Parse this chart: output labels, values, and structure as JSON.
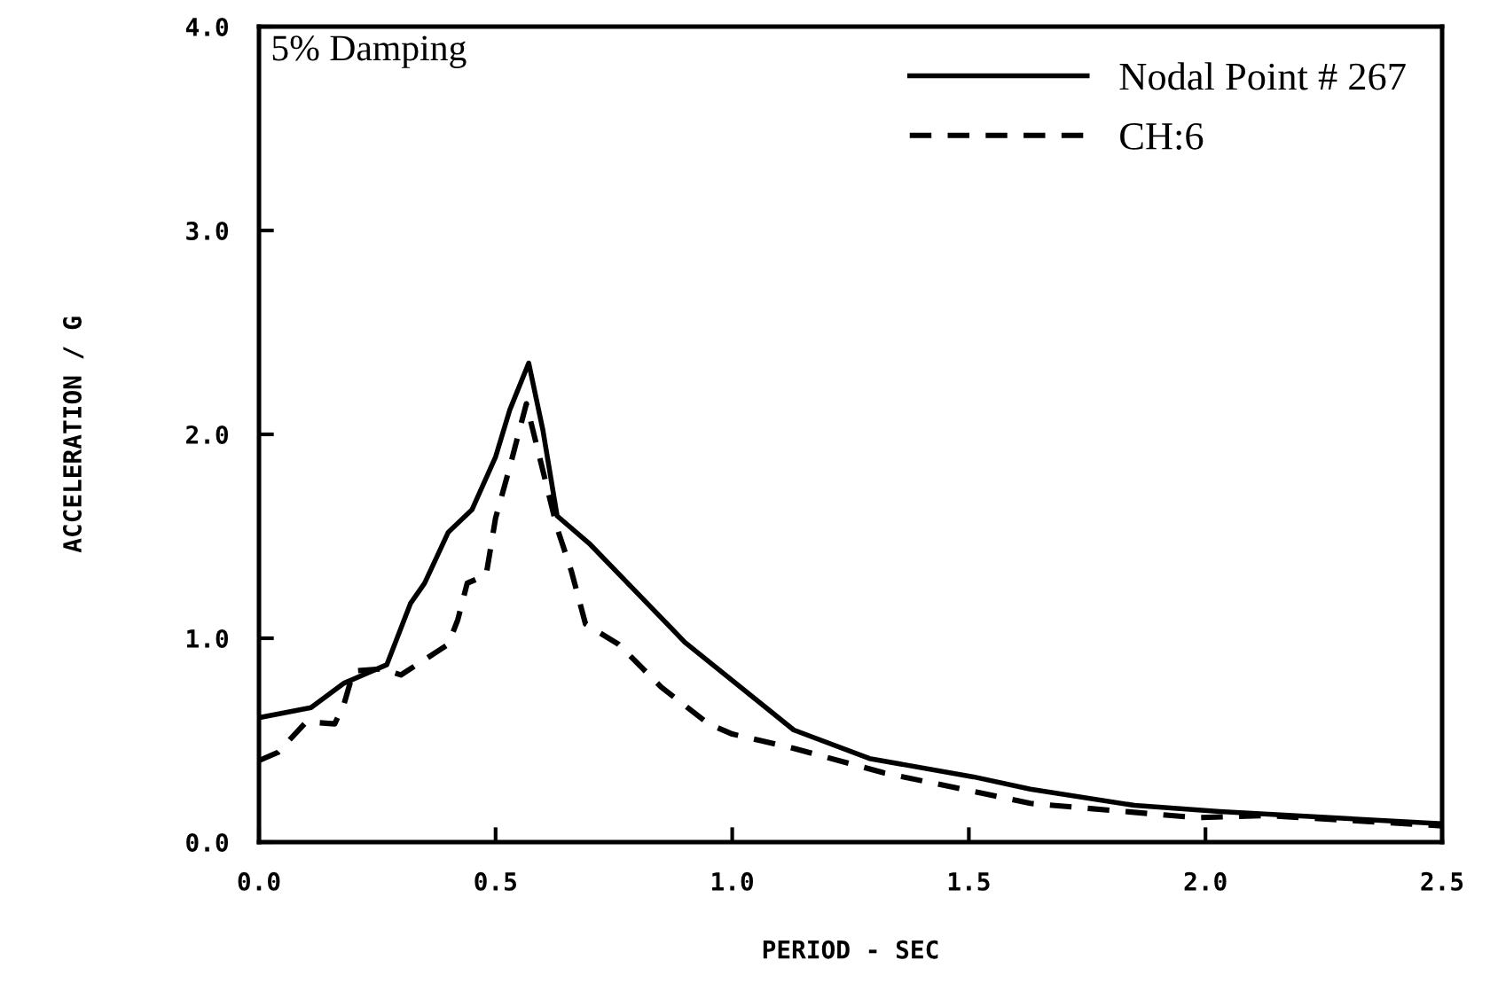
{
  "chart_data": {
    "type": "line",
    "xlabel": "PERIOD - SEC",
    "ylabel": "ACCELERATION / G",
    "annotations": [
      "5% Damping"
    ],
    "xlim": [
      0,
      2.5
    ],
    "ylim": [
      0,
      4
    ],
    "xticks": [
      {
        "value": 0,
        "label": "0.0"
      },
      {
        "value": 0.5,
        "label": "0.5"
      },
      {
        "value": 1,
        "label": "1.0"
      },
      {
        "value": 1.5,
        "label": "1.5"
      },
      {
        "value": 2,
        "label": "2.0"
      },
      {
        "value": 2.5,
        "label": "2.5"
      }
    ],
    "yticks": [
      {
        "value": 0,
        "label": "0.0"
      },
      {
        "value": 1,
        "label": "1.0"
      },
      {
        "value": 2,
        "label": "2.0"
      },
      {
        "value": 3,
        "label": "3.0"
      },
      {
        "value": 4,
        "label": "4.0"
      }
    ],
    "grid": false,
    "legend": "top right",
    "series": [
      {
        "name": "Nodal Point # 267",
        "color": "#000000",
        "line_style": "solid",
        "x": [
          0.0,
          0.11,
          0.18,
          0.27,
          0.32,
          0.35,
          0.4,
          0.45,
          0.5,
          0.53,
          0.57,
          0.6,
          0.63,
          0.7,
          0.8,
          0.9,
          1.13,
          1.29,
          1.51,
          1.63,
          1.85,
          2.03,
          2.5
        ],
        "values": [
          0.61,
          0.66,
          0.78,
          0.87,
          1.17,
          1.27,
          1.52,
          1.63,
          1.89,
          2.12,
          2.35,
          2.02,
          1.6,
          1.46,
          1.22,
          0.98,
          0.55,
          0.41,
          0.32,
          0.26,
          0.18,
          0.15,
          0.09
        ]
      },
      {
        "name": "CH:6",
        "color": "#000000",
        "line_style": "dashed",
        "x": [
          0.0,
          0.04,
          0.1,
          0.16,
          0.18,
          0.2,
          0.26,
          0.3,
          0.4,
          0.42,
          0.44,
          0.48,
          0.5,
          0.53,
          0.565,
          0.63,
          0.66,
          0.69,
          0.76,
          0.85,
          0.95,
          1.0,
          1.13,
          1.32,
          1.63,
          1.98,
          2.13,
          2.5
        ],
        "values": [
          0.4,
          0.44,
          0.59,
          0.58,
          0.68,
          0.84,
          0.85,
          0.82,
          0.97,
          1.09,
          1.27,
          1.31,
          1.59,
          1.84,
          2.15,
          1.54,
          1.33,
          1.07,
          0.97,
          0.76,
          0.58,
          0.53,
          0.46,
          0.34,
          0.19,
          0.12,
          0.13,
          0.08
        ]
      }
    ]
  }
}
